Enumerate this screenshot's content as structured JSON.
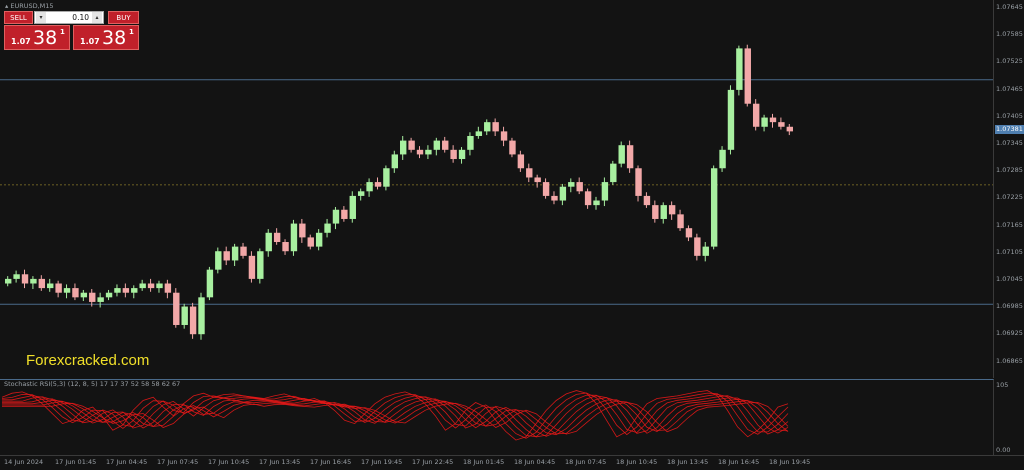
{
  "symbol_title": "EURUSD,M15",
  "trade_panel": {
    "sell_label": "SELL",
    "buy_label": "BUY",
    "lot_value": "0.10",
    "sell_quote": {
      "small": "1.07",
      "big": "38",
      "sup": "1"
    },
    "buy_quote": {
      "small": "1.07",
      "big": "38",
      "sup": "1"
    }
  },
  "current_price": "1.07381",
  "price_axis": [
    "1.07645",
    "1.07585",
    "1.07525",
    "1.07465",
    "1.07405",
    "1.07345",
    "1.07285",
    "1.07225",
    "1.07165",
    "1.07105",
    "1.07045",
    "1.06985",
    "1.06925",
    "1.06865"
  ],
  "indicator_axis": {
    "top": "105",
    "bottom": "0.00"
  },
  "time_axis": [
    "14 Jun 2024",
    "17 Jun 01:45",
    "17 Jun 04:45",
    "17 Jun 07:45",
    "17 Jun 10:45",
    "17 Jun 13:45",
    "17 Jun 16:45",
    "17 Jun 19:45",
    "17 Jun 22:45",
    "18 Jun 01:45",
    "18 Jun 04:45",
    "18 Jun 07:45",
    "18 Jun 10:45",
    "18 Jun 13:45",
    "18 Jun 16:45",
    "18 Jun 19:45"
  ],
  "indicator_label": "Stochastic RSI(5,3) (12, 8, 5) 17 17 37 52 58 58 62 67",
  "watermark": "Forexcracked.com",
  "colors": {
    "bull": "#a8f0a0",
    "bear": "#f2a8a8",
    "stoch": "#e81818",
    "hline": "#4a6a8a"
  },
  "chart_data": {
    "type": "candlestick",
    "close_series": [
      1.0706,
      1.0707,
      1.0705,
      1.0706,
      1.0704,
      1.0705,
      1.0703,
      1.0704,
      1.0702,
      1.0703,
      1.0701,
      1.0702,
      1.0703,
      1.0704,
      1.0703,
      1.0704,
      1.0705,
      1.0704,
      1.0705,
      1.0703,
      1.0696,
      1.07,
      1.0694,
      1.0702,
      1.0708,
      1.0712,
      1.071,
      1.0713,
      1.0711,
      1.0706,
      1.0712,
      1.0716,
      1.0714,
      1.0712,
      1.0718,
      1.0715,
      1.0713,
      1.0716,
      1.0718,
      1.0721,
      1.0719,
      1.0724,
      1.0725,
      1.0727,
      1.0726,
      1.073,
      1.0733,
      1.0736,
      1.0734,
      1.0733,
      1.0734,
      1.0736,
      1.0734,
      1.0732,
      1.0734,
      1.0737,
      1.0738,
      1.074,
      1.0738,
      1.0736,
      1.0733,
      1.073,
      1.0728,
      1.0727,
      1.0724,
      1.0723,
      1.0726,
      1.0727,
      1.0725,
      1.0722,
      1.0723,
      1.0727,
      1.0731,
      1.0735,
      1.073,
      1.0724,
      1.0722,
      1.0719,
      1.0722,
      1.072,
      1.0717,
      1.0715,
      1.0711,
      1.0713,
      1.073,
      1.0734,
      1.0747,
      1.0756,
      1.0744,
      1.0739,
      1.0741,
      1.074,
      1.0739,
      1.0738
    ]
  }
}
